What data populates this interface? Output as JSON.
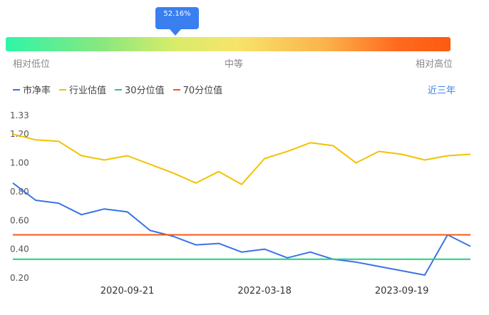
{
  "gauge": {
    "percent_text": "52.16%",
    "percent": 52.16,
    "low_label": "相对低位",
    "mid_label": "中等",
    "high_label": "相对高位"
  },
  "legend": [
    {
      "label": "市净率",
      "color": "#3a73e6"
    },
    {
      "label": "行业估值",
      "color": "#f2c200"
    },
    {
      "label": "30分位值",
      "color": "#22d07c"
    },
    {
      "label": "70分位值",
      "color": "#f45a12"
    }
  ],
  "period_label": "近三年",
  "chart_data": {
    "type": "line",
    "y_ticks": [
      "1.33",
      "1.20",
      "1.00",
      "0.80",
      "0.60",
      "0.40",
      "0.20"
    ],
    "y_tick_values": [
      1.33,
      1.2,
      1.0,
      0.8,
      0.6,
      0.4,
      0.2
    ],
    "ylim": [
      0.2,
      1.33
    ],
    "x_ticks": [
      "2020-09-21",
      "2022-03-18",
      "2023-09-19"
    ],
    "x": [
      "2019-07",
      "2019-10",
      "2020-01",
      "2020-04",
      "2020-07",
      "2020-09-21",
      "2020-12",
      "2021-03",
      "2021-06",
      "2021-09",
      "2021-12",
      "2022-03-18",
      "2022-06",
      "2022-09",
      "2022-12",
      "2023-03",
      "2023-06",
      "2023-09-19",
      "2023-12",
      "2024-03",
      "2024-06"
    ],
    "series": [
      {
        "name": "市净率",
        "color": "#3a73e6",
        "values": [
          0.86,
          0.74,
          0.72,
          0.64,
          0.68,
          0.66,
          0.53,
          0.49,
          0.43,
          0.44,
          0.38,
          0.4,
          0.34,
          0.38,
          0.33,
          0.31,
          0.28,
          0.25,
          0.22,
          0.5,
          0.42
        ]
      },
      {
        "name": "行业估值",
        "color": "#f2c200",
        "values": [
          1.2,
          1.16,
          1.15,
          1.05,
          1.02,
          1.05,
          0.99,
          0.93,
          0.86,
          0.94,
          0.85,
          1.03,
          1.08,
          1.14,
          1.12,
          1.0,
          1.08,
          1.06,
          1.02,
          1.05,
          1.06
        ]
      },
      {
        "name": "30分位值",
        "color": "#22d07c",
        "constant": 0.33
      },
      {
        "name": "70分位值",
        "color": "#f45a12",
        "constant": 0.5
      }
    ]
  }
}
